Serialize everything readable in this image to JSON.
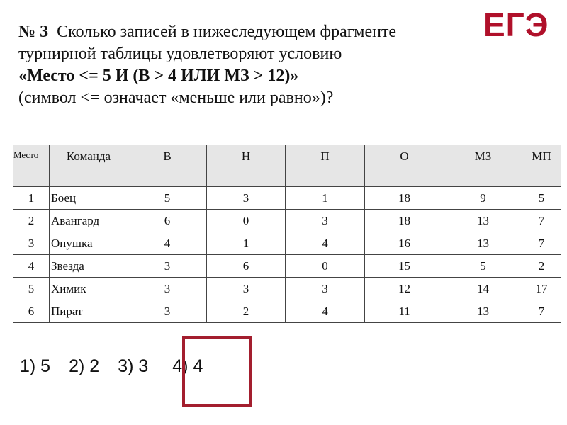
{
  "logo": "ЕГЭ",
  "question": {
    "number": "№ 3",
    "line1": "Сколько записей в нижеследующем фрагменте",
    "line2": "турнирной таблицы удовлетворяют условию",
    "condition": "«Место <= 5 И (В > 4 ИЛИ МЗ > 12)»",
    "note": "(символ <= означает «меньше или равно»)?"
  },
  "table": {
    "headers": [
      "Место",
      "Команда",
      "В",
      "Н",
      "П",
      "О",
      "МЗ",
      "МП"
    ],
    "rows": [
      [
        "1",
        "Боец",
        "5",
        "3",
        "1",
        "18",
        "9",
        "5"
      ],
      [
        "2",
        "Авангард",
        "6",
        "0",
        "3",
        "18",
        "13",
        "7"
      ],
      [
        "3",
        "Опушка",
        "4",
        "1",
        "4",
        "16",
        "13",
        "7"
      ],
      [
        "4",
        "Звезда",
        "3",
        "6",
        "0",
        "15",
        "5",
        "2"
      ],
      [
        "5",
        "Химик",
        "3",
        "3",
        "3",
        "12",
        "14",
        "17"
      ],
      [
        "6",
        "Пират",
        "3",
        "2",
        "4",
        "11",
        "13",
        "7"
      ]
    ]
  },
  "answers": [
    "1) 5",
    "2) 2",
    "3) 3",
    "4) 4"
  ],
  "selected_answer": "4) 4",
  "colors": {
    "accent": "#a31e2e"
  }
}
